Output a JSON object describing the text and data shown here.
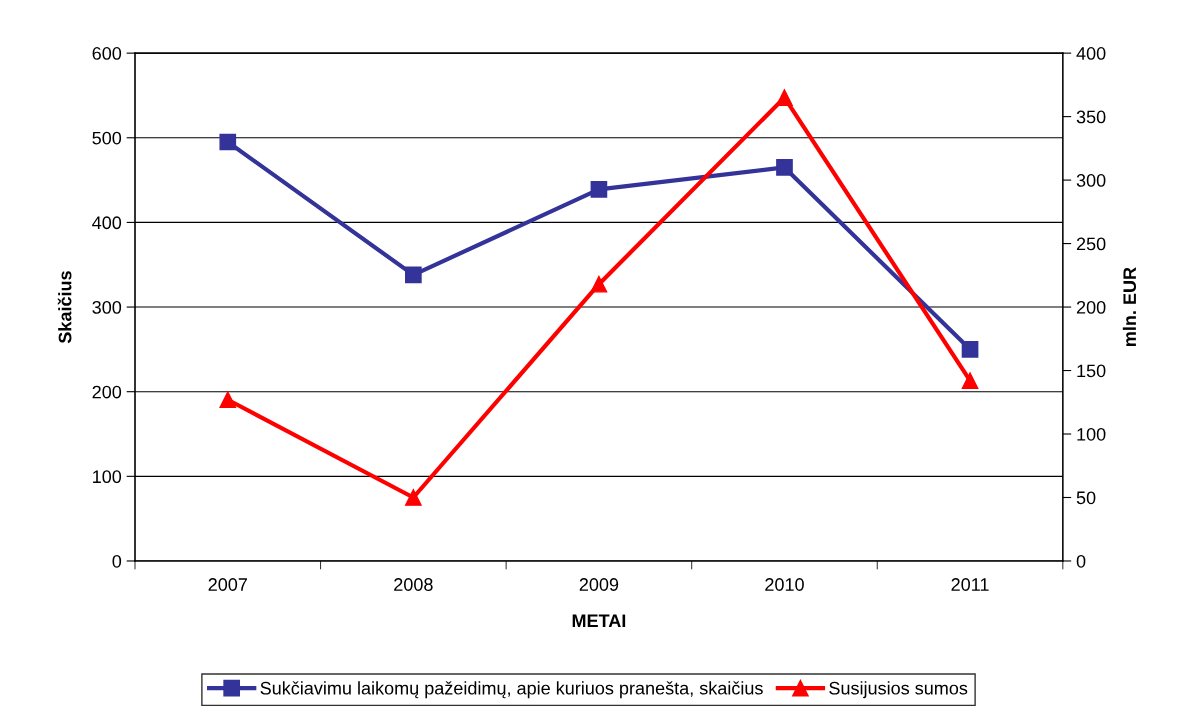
{
  "chart_data": {
    "type": "line",
    "xlabel": "METAI",
    "ylabel": "Skaičius",
    "y2label": "mln. EUR",
    "categories": [
      "2007",
      "2008",
      "2009",
      "2010",
      "2011"
    ],
    "series": [
      {
        "name": "Sukčiavimu laikomų pažeidimų, apie kuriuos pranešta, skaičius",
        "color": "#333399",
        "values": [
          495,
          338,
          439,
          465,
          250
        ],
        "marker": "square"
      },
      {
        "name": "Susijusios sumos",
        "color": "#ff0000",
        "values": [
          127,
          50,
          218,
          365,
          142
        ],
        "marker": "triangle",
        "axis": "y2"
      }
    ],
    "ylim": [
      0,
      600
    ],
    "yticks": [
      0,
      100,
      200,
      300,
      400,
      500,
      600
    ],
    "y2lim": [
      0,
      400
    ],
    "y2ticks": [
      0,
      50,
      100,
      150,
      200,
      250,
      300,
      350,
      400
    ],
    "grid": "y",
    "legend": "bottom",
    "line_style": "solid"
  }
}
